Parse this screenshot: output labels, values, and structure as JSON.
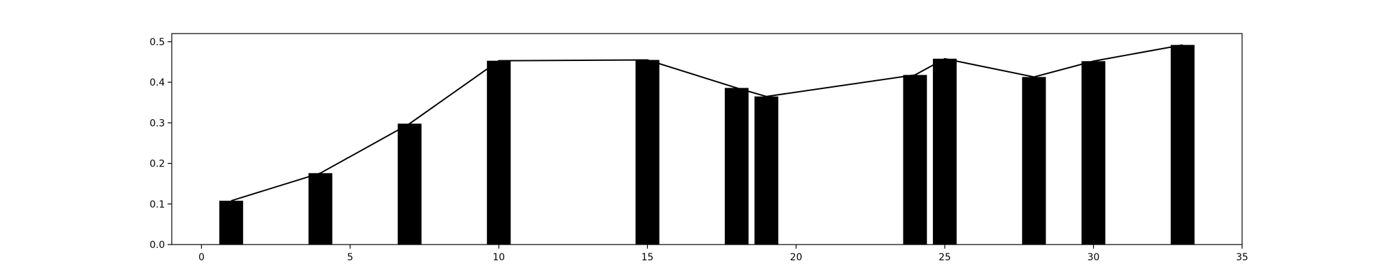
{
  "chart_data": {
    "type": "bar",
    "x": [
      1,
      4,
      7,
      10,
      15,
      18,
      19,
      24,
      25,
      28,
      30,
      33
    ],
    "values": [
      0.108,
      0.176,
      0.298,
      0.453,
      0.455,
      0.386,
      0.365,
      0.418,
      0.458,
      0.413,
      0.452,
      0.492
    ],
    "overlay_line": true,
    "xlim": [
      -1,
      35
    ],
    "ylim": [
      0,
      0.52
    ],
    "x_ticks": [
      0,
      5,
      10,
      15,
      20,
      25,
      30,
      35
    ],
    "y_ticks": [
      0.0,
      0.1,
      0.2,
      0.3,
      0.4,
      0.5
    ],
    "x_tick_labels": [
      "0",
      "5",
      "10",
      "15",
      "20",
      "25",
      "30",
      "35"
    ],
    "y_tick_labels": [
      "0.0",
      "0.1",
      "0.2",
      "0.3",
      "0.4",
      "0.5"
    ],
    "bar_color": "#000000",
    "line_color": "#000000",
    "grid": false,
    "legend": "none"
  }
}
